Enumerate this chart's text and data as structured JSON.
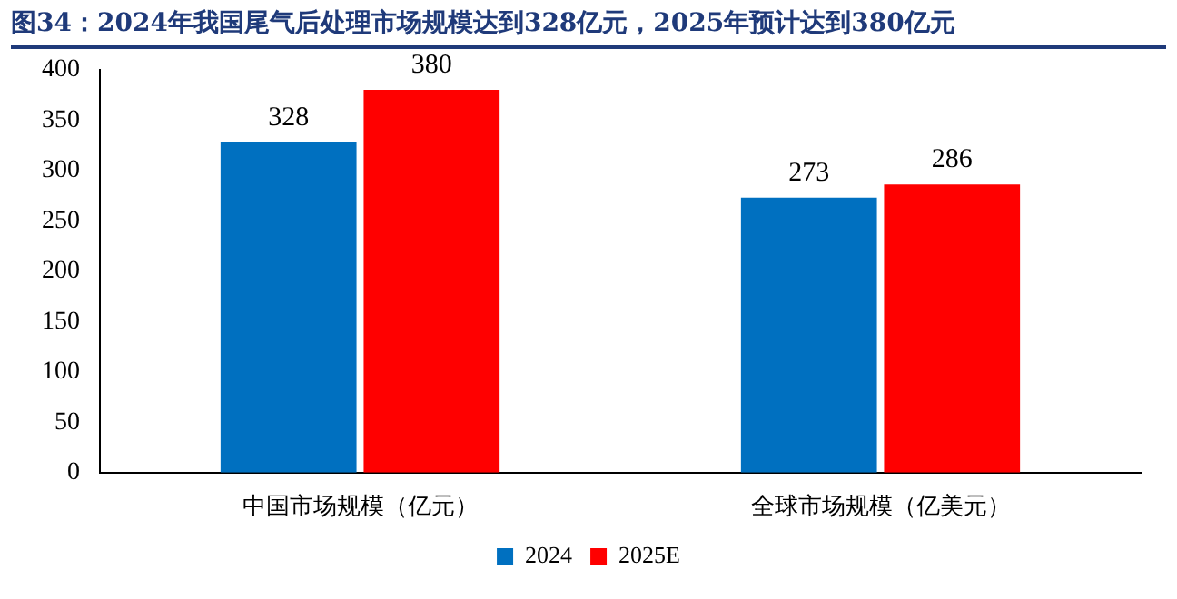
{
  "chart_data": {
    "type": "bar",
    "title": "图34：2024年我国尾气后处理市场规模达到328亿元，2025年预计达到380亿元",
    "categories": [
      "中国市场规模（亿元）",
      "全球市场规模（亿美元）"
    ],
    "series": [
      {
        "name": "2024",
        "color": "#0070c0",
        "values": [
          328,
          273
        ]
      },
      {
        "name": "2025E",
        "color": "#ff0000",
        "values": [
          380,
          286
        ]
      }
    ],
    "ylim": [
      0,
      400
    ],
    "yticks": [
      0,
      50,
      100,
      150,
      200,
      250,
      300,
      350,
      400
    ],
    "grid": false,
    "legend": "bottom",
    "data_labels": true
  }
}
